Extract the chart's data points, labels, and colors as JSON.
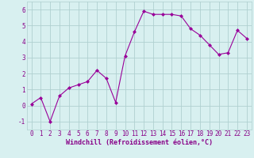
{
  "x": [
    0,
    1,
    2,
    3,
    4,
    5,
    6,
    7,
    8,
    9,
    10,
    11,
    12,
    13,
    14,
    15,
    16,
    17,
    18,
    19,
    20,
    21,
    22,
    23
  ],
  "y": [
    0.1,
    0.5,
    -1.0,
    0.6,
    1.1,
    1.3,
    1.5,
    2.2,
    1.7,
    0.2,
    3.1,
    4.6,
    5.9,
    5.7,
    5.7,
    5.7,
    5.6,
    4.8,
    4.4,
    3.8,
    3.2,
    3.3,
    4.7,
    4.2
  ],
  "line_color": "#990099",
  "marker": "D",
  "marker_size": 2,
  "bg_color": "#d8f0f0",
  "grid_color": "#b0d0d0",
  "xlabel": "Windchill (Refroidissement éolien,°C)",
  "ylabel_ticks": [
    -1,
    0,
    1,
    2,
    3,
    4,
    5,
    6
  ],
  "xlim": [
    -0.5,
    23.5
  ],
  "ylim": [
    -1.5,
    6.5
  ],
  "label_color": "#880088",
  "tick_fontsize": 5.5,
  "xlabel_fontsize": 6.0
}
